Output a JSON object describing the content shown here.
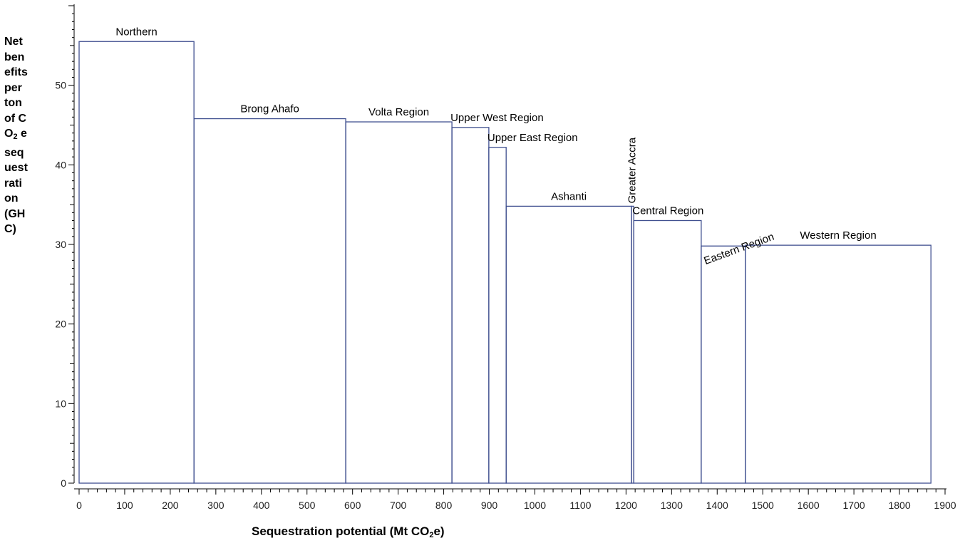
{
  "chart_data": {
    "type": "bar",
    "subtype": "variable-width",
    "xlabel_text": "Sequestration potential (Mt CO",
    "xlabel_sub": "2",
    "xlabel_tail": "e)",
    "ylabel_text": "Net benefits per ton of CO",
    "ylabel_sub": "2",
    "ylabel_tail": " e sequestration (GHC)",
    "xlim": [
      0,
      1900
    ],
    "ylim": [
      0,
      60
    ],
    "x_ticks": [
      0,
      100,
      200,
      300,
      400,
      500,
      600,
      700,
      800,
      900,
      1000,
      1100,
      1200,
      1300,
      1400,
      1500,
      1600,
      1700,
      1800,
      1900
    ],
    "y_ticks": [
      0,
      10,
      20,
      30,
      40,
      50
    ],
    "bar_color": "#3f4f8f",
    "bars": [
      {
        "name": "Northern",
        "start": 0,
        "end": 252,
        "value": 55.5,
        "label_rotation": 0
      },
      {
        "name": "Brong Ahafo",
        "start": 252,
        "end": 585,
        "value": 45.8,
        "label_rotation": 0
      },
      {
        "name": "Volta Region",
        "start": 585,
        "end": 818,
        "value": 45.4,
        "label_rotation": 0
      },
      {
        "name": "Upper West Region",
        "start": 818,
        "end": 899,
        "value": 44.7,
        "label_rotation": 0
      },
      {
        "name": "Upper East Region",
        "start": 899,
        "end": 937,
        "value": 42.2,
        "label_rotation": 0
      },
      {
        "name": "Ashanti",
        "start": 937,
        "end": 1212,
        "value": 34.8,
        "label_rotation": 0
      },
      {
        "name": "Greater Accra",
        "start": 1212,
        "end": 1217,
        "value": 34.8,
        "label_rotation": -90
      },
      {
        "name": "Central Region",
        "start": 1217,
        "end": 1365,
        "value": 33.0,
        "label_rotation": 0
      },
      {
        "name": "Eastern Region",
        "start": 1365,
        "end": 1462,
        "value": 29.8,
        "label_rotation": -20
      },
      {
        "name": "Western Region",
        "start": 1462,
        "end": 1869,
        "value": 29.9,
        "label_rotation": 0
      }
    ]
  }
}
